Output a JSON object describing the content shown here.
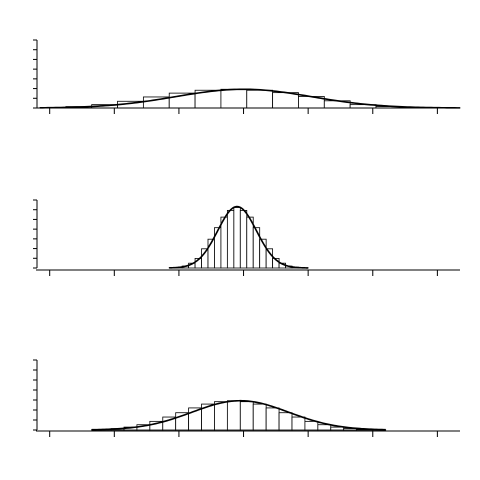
{
  "chart_data": [
    {
      "type": "bar",
      "subtype": "histogram-with-density-curve",
      "title": "",
      "xlabel": "",
      "ylabel": "",
      "xlim": [
        -0.15,
        6.35
      ],
      "ylim": [
        0,
        7
      ],
      "xticks": [
        0,
        1,
        2,
        3,
        4,
        5,
        6
      ],
      "yticks": [
        0,
        1,
        2,
        3,
        4,
        5,
        6,
        7
      ],
      "grid": false,
      "bin_edges": [
        -0.15,
        0.25,
        0.65,
        1.05,
        1.45,
        1.85,
        2.25,
        2.65,
        3.05,
        3.45,
        3.85,
        4.25,
        4.65,
        5.05,
        5.45,
        5.85,
        6.35
      ],
      "values": [
        0.05,
        0.15,
        0.35,
        0.7,
        1.15,
        1.55,
        1.85,
        1.95,
        1.85,
        1.6,
        1.2,
        0.75,
        0.35,
        0.15,
        0.06,
        0.02
      ],
      "curve": {
        "type": "normal",
        "mean": 3.0,
        "sd": 1.05,
        "peak": 1.95
      }
    },
    {
      "type": "bar",
      "subtype": "histogram-with-density-curve",
      "title": "",
      "xlabel": "",
      "ylabel": "",
      "xlim": [
        -0.15,
        6.35
      ],
      "ylim": [
        0,
        7
      ],
      "xticks": [
        0,
        1,
        2,
        3,
        4,
        5,
        6
      ],
      "yticks": [
        0,
        1,
        2,
        3,
        4,
        5,
        6,
        7
      ],
      "grid": false,
      "bin_edges": [
        1.85,
        2.05,
        2.15,
        2.25,
        2.35,
        2.45,
        2.55,
        2.65,
        2.75,
        2.85,
        2.95,
        3.05,
        3.15,
        3.25,
        3.35,
        3.45,
        3.55,
        3.65,
        3.75,
        3.85,
        4.0
      ],
      "values": [
        0.05,
        0.2,
        0.5,
        1.0,
        2.0,
        3.0,
        4.2,
        5.3,
        6.0,
        6.3,
        6.0,
        5.3,
        4.2,
        3.0,
        2.0,
        1.0,
        0.5,
        0.2,
        0.08,
        0.02
      ],
      "curve": {
        "type": "normal",
        "mean": 2.9,
        "sd": 0.3,
        "peak": 6.4
      }
    },
    {
      "type": "bar",
      "subtype": "histogram-with-density-curve",
      "title": "",
      "xlabel": "",
      "ylabel": "",
      "xlim": [
        -0.15,
        6.35
      ],
      "ylim": [
        0,
        7
      ],
      "xticks": [
        0,
        1,
        2,
        3,
        4,
        5,
        6
      ],
      "yticks": [
        0,
        1,
        2,
        3,
        4,
        5,
        6,
        7
      ],
      "grid": false,
      "bin_edges": [
        0.65,
        0.95,
        1.15,
        1.35,
        1.55,
        1.75,
        1.95,
        2.15,
        2.35,
        2.55,
        2.75,
        2.95,
        3.15,
        3.35,
        3.55,
        3.75,
        3.95,
        4.15,
        4.35,
        4.55,
        4.75,
        5.0,
        5.2
      ],
      "values": [
        0.05,
        0.15,
        0.3,
        0.55,
        0.9,
        1.35,
        1.8,
        2.3,
        2.7,
        2.95,
        3.05,
        2.95,
        2.7,
        2.3,
        1.8,
        1.35,
        0.9,
        0.55,
        0.3,
        0.15,
        0.06,
        0.02
      ],
      "curve": {
        "type": "normal",
        "mean": 2.95,
        "sd": 0.75,
        "peak": 3.05
      }
    }
  ]
}
